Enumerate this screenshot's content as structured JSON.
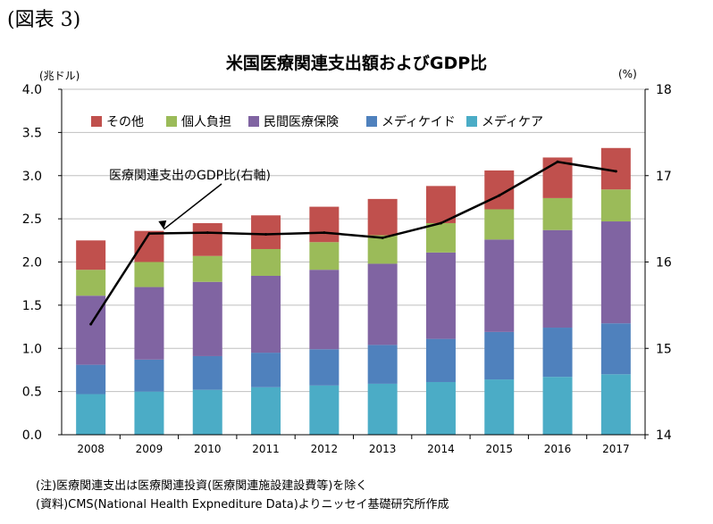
{
  "figure_label": "(図表 3)",
  "notes": [
    "(注)医療関連支出は医療関連投資(医療関連施設建設費等)を除く",
    "(資料)CMS(National Health Expnediture Data)よりニッセイ基礎研究所作成"
  ],
  "chart_data": {
    "type": "bar",
    "stacked": true,
    "title": "米国医療関連支出額およびGDP比",
    "y_unit_left": "(兆ドル)",
    "y_unit_right": "(%)",
    "categories": [
      "2008",
      "2009",
      "2010",
      "2011",
      "2012",
      "2013",
      "2014",
      "2015",
      "2016",
      "2017"
    ],
    "ylim": [
      0,
      4.0
    ],
    "yticks": [
      "0.0",
      "0.5",
      "1.0",
      "1.5",
      "2.0",
      "2.5",
      "3.0",
      "3.5",
      "4.0"
    ],
    "y2lim": [
      14,
      18
    ],
    "y2ticks": [
      "14",
      "15",
      "16",
      "17",
      "18"
    ],
    "legend_position": "top-left",
    "series": [
      {
        "name": "メディケア",
        "color": "#4bacc6",
        "values": [
          0.47,
          0.5,
          0.52,
          0.55,
          0.57,
          0.59,
          0.61,
          0.64,
          0.67,
          0.7
        ]
      },
      {
        "name": "メディケイド",
        "color": "#4f81bd",
        "values": [
          0.34,
          0.37,
          0.39,
          0.4,
          0.42,
          0.45,
          0.5,
          0.55,
          0.57,
          0.59
        ]
      },
      {
        "name": "民間医療保険",
        "color": "#8064a2",
        "values": [
          0.8,
          0.84,
          0.86,
          0.89,
          0.92,
          0.94,
          1.0,
          1.07,
          1.13,
          1.18
        ]
      },
      {
        "name": "個人負担",
        "color": "#9bbb59",
        "values": [
          0.3,
          0.29,
          0.3,
          0.31,
          0.32,
          0.33,
          0.34,
          0.35,
          0.37,
          0.37
        ]
      },
      {
        "name": "その他",
        "color": "#c0504d",
        "values": [
          0.34,
          0.36,
          0.38,
          0.39,
          0.41,
          0.42,
          0.43,
          0.45,
          0.47,
          0.48
        ]
      }
    ],
    "line_series": {
      "name": "医療関連支出のGDP比(右軸)",
      "axis": "right",
      "color": "#000000",
      "values": [
        15.28,
        16.33,
        16.34,
        16.32,
        16.34,
        16.28,
        16.45,
        16.77,
        17.16,
        17.05
      ]
    }
  }
}
